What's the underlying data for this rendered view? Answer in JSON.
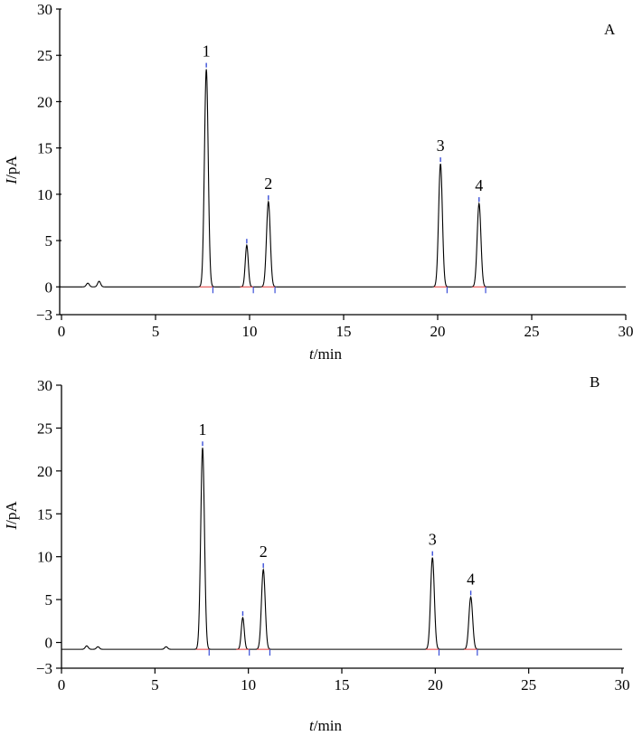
{
  "chart_data": [
    {
      "type": "line",
      "panel_label": "A",
      "xlabel": {
        "var": "t",
        "unit": "/min"
      },
      "ylabel": {
        "var": "I",
        "unit": "/pA"
      },
      "xlim": [
        0,
        30
      ],
      "ylim": [
        -3,
        30
      ],
      "x_ticks": [
        "0",
        "5",
        "10",
        "15",
        "20",
        "25",
        "30"
      ],
      "y_ticks": [
        "−3",
        "0",
        "5",
        "10",
        "15",
        "20",
        "25",
        "30"
      ],
      "baseline": 0,
      "peaks": [
        {
          "label": "1",
          "rt": 7.7,
          "height": 23.5
        },
        {
          "label": "2",
          "rt": 11.0,
          "height": 9.2
        },
        {
          "label": "3",
          "rt": 20.15,
          "height": 13.3
        },
        {
          "label": "4",
          "rt": 22.2,
          "height": 9.0
        }
      ],
      "minor_peaks": [
        {
          "rt": 9.85,
          "height": 4.5
        },
        {
          "rt": 1.4,
          "height": 0.4
        },
        {
          "rt": 2.0,
          "height": 0.6
        }
      ],
      "grid": false
    },
    {
      "type": "line",
      "panel_label": "B",
      "xlabel": {
        "var": "t",
        "unit": "/min"
      },
      "ylabel": {
        "var": "I",
        "unit": "/pA"
      },
      "xlim": [
        0,
        30
      ],
      "ylim": [
        -3,
        30
      ],
      "x_ticks": [
        "0",
        "5",
        "10",
        "15",
        "20",
        "25",
        "30"
      ],
      "y_ticks": [
        "−3",
        "0",
        "5",
        "10",
        "15",
        "20",
        "25",
        "30"
      ],
      "baseline": -0.8,
      "peaks": [
        {
          "label": "1",
          "rt": 7.55,
          "height": 22.7
        },
        {
          "label": "2",
          "rt": 10.8,
          "height": 8.5
        },
        {
          "label": "3",
          "rt": 19.85,
          "height": 9.9
        },
        {
          "label": "4",
          "rt": 21.9,
          "height": 5.3
        }
      ],
      "minor_peaks": [
        {
          "rt": 9.7,
          "height": 2.9
        },
        {
          "rt": 1.35,
          "height": -0.4
        },
        {
          "rt": 1.95,
          "height": -0.5
        },
        {
          "rt": 5.6,
          "height": -0.5
        }
      ],
      "grid": false
    }
  ]
}
